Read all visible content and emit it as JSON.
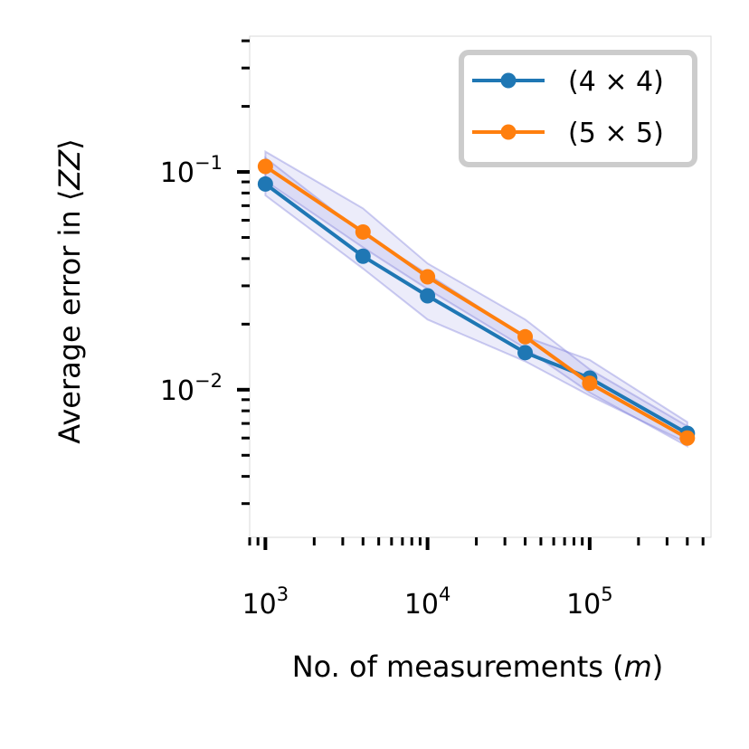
{
  "chart_data": {
    "type": "line",
    "xscale": "log",
    "yscale": "log",
    "xlabel": "No. of measurements (m)",
    "xlabel_parts": {
      "prefix": "No. of measurements (",
      "var": "m",
      "suffix": ")"
    },
    "ylabel": "Average error  in ⟨ZZ⟩",
    "ylabel_parts": {
      "prefix": "Average error  in ⟨",
      "var": "ZZ",
      "suffix": "⟩"
    },
    "xlim": [
      800,
      560000
    ],
    "ylim": [
      0.0021,
      0.42
    ],
    "x": [
      1000,
      4000,
      10000,
      40000,
      100000,
      400000
    ],
    "xticks": [
      {
        "value": 1000,
        "base": "10",
        "exp": "3"
      },
      {
        "value": 10000,
        "base": "10",
        "exp": "4"
      },
      {
        "value": 100000,
        "base": "10",
        "exp": "5"
      }
    ],
    "yticks": [
      {
        "value": 0.1,
        "base": "10",
        "exp": "−1"
      },
      {
        "value": 0.01,
        "base": "10",
        "exp": "−2"
      }
    ],
    "series": [
      {
        "name": "(4 × 4)",
        "color": "#1f77b4",
        "values": [
          0.088,
          0.041,
          0.027,
          0.0148,
          0.0113,
          0.0063
        ],
        "band_low": [
          0.078,
          0.036,
          0.021,
          0.0135,
          0.0094,
          0.0057
        ],
        "band_high": [
          0.116,
          0.052,
          0.034,
          0.0175,
          0.0137,
          0.0071
        ]
      },
      {
        "name": "(5 × 5)",
        "color": "#ff7f0e",
        "values": [
          0.106,
          0.053,
          0.033,
          0.0175,
          0.0107,
          0.006
        ],
        "band_low": [
          0.091,
          0.045,
          0.029,
          0.0155,
          0.0097,
          0.0055
        ],
        "band_high": [
          0.124,
          0.068,
          0.038,
          0.021,
          0.0124,
          0.0068
        ]
      }
    ],
    "band_color": "#6f6fd6",
    "legend": {
      "position": "top-right"
    },
    "grid": false
  }
}
